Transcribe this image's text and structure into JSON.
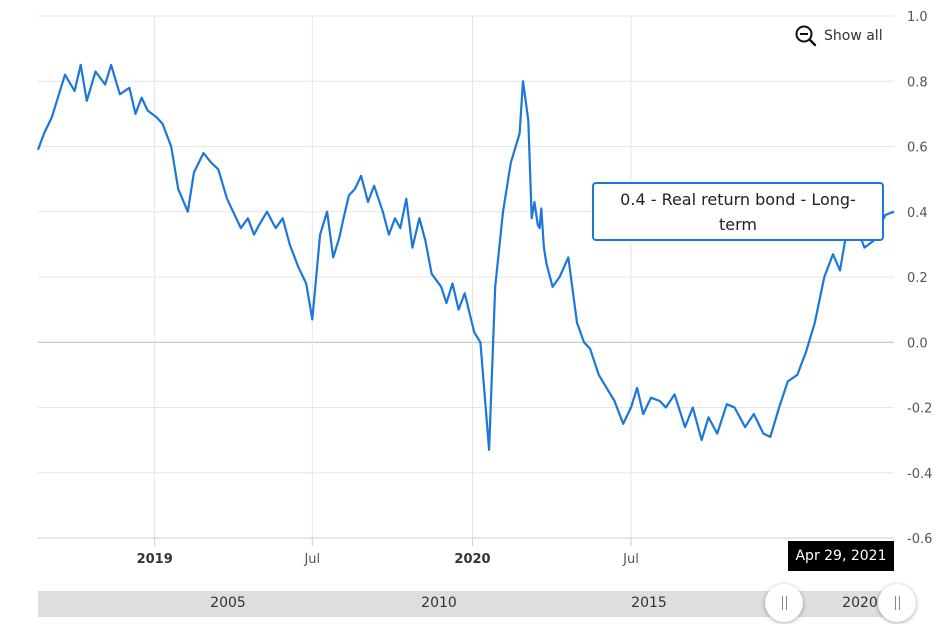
{
  "controls": {
    "show_all_label": "Show all",
    "zoom_out_icon": "zoom-out-icon"
  },
  "tooltip": {
    "text": "0.4 - Real return bond - Long-term"
  },
  "crosshair_date": "Apr 29, 2021",
  "navigator": {
    "labels": [
      "2005",
      "2010",
      "2015",
      "2020"
    ],
    "left_handle_icon": "drag-handle-icon",
    "right_handle_icon": "drag-handle-icon"
  },
  "colors": {
    "line": "#1b77d9",
    "grid": "#e6e6e6",
    "zero_line": "#bbbbbb",
    "tooltip_border": "#1b77d9"
  },
  "chart_data": {
    "type": "line",
    "ylim": [
      -0.6,
      1.0
    ],
    "y_ticks": [
      "1.0",
      "0.8",
      "0.6",
      "0.4",
      "0.2",
      "0.0",
      "-0.2",
      "-0.4",
      "-0.6"
    ],
    "x_ticks": [
      {
        "label": "2019",
        "date": "2019-01-01",
        "bold": true
      },
      {
        "label": "Jul",
        "date": "2019-07-01",
        "bold": false
      },
      {
        "label": "2020",
        "date": "2020-01-01",
        "bold": true
      },
      {
        "label": "Jul",
        "date": "2020-07-01",
        "bold": false
      }
    ],
    "xlim": [
      "2018-08-20",
      "2021-04-29"
    ],
    "grid": true,
    "series": [
      {
        "name": "Real return bond - Long-term",
        "x": [
          "2018-08-20",
          "2018-08-27",
          "2018-09-05",
          "2018-09-20",
          "2018-10-01",
          "2018-10-08",
          "2018-10-15",
          "2018-10-25",
          "2018-11-05",
          "2018-11-12",
          "2018-11-22",
          "2018-12-03",
          "2018-12-10",
          "2018-12-17",
          "2018-12-24",
          "2019-01-03",
          "2019-01-10",
          "2019-01-20",
          "2019-01-28",
          "2019-02-08",
          "2019-02-15",
          "2019-02-26",
          "2019-03-07",
          "2019-03-15",
          "2019-03-25",
          "2019-04-01",
          "2019-04-10",
          "2019-04-18",
          "2019-04-25",
          "2019-05-01",
          "2019-05-10",
          "2019-05-20",
          "2019-05-28",
          "2019-06-05",
          "2019-06-15",
          "2019-06-24",
          "2019-07-01",
          "2019-07-10",
          "2019-07-18",
          "2019-07-25",
          "2019-08-01",
          "2019-08-05",
          "2019-08-12",
          "2019-08-19",
          "2019-08-26",
          "2019-09-03",
          "2019-09-10",
          "2019-09-20",
          "2019-09-27",
          "2019-10-04",
          "2019-10-10",
          "2019-10-17",
          "2019-10-24",
          "2019-11-01",
          "2019-11-08",
          "2019-11-15",
          "2019-11-26",
          "2019-12-02",
          "2019-12-09",
          "2019-12-16",
          "2019-12-23",
          "2020-01-03",
          "2020-01-10",
          "2020-01-20",
          "2020-01-27",
          "2020-02-05",
          "2020-02-14",
          "2020-02-24",
          "2020-02-28",
          "2020-03-05",
          "2020-03-09",
          "2020-03-12",
          "2020-03-16",
          "2020-03-18",
          "2020-03-20",
          "2020-03-23",
          "2020-03-26",
          "2020-04-02",
          "2020-04-10",
          "2020-04-20",
          "2020-04-30",
          "2020-05-08",
          "2020-05-15",
          "2020-05-25",
          "2020-06-03",
          "2020-06-12",
          "2020-06-22",
          "2020-07-01",
          "2020-07-08",
          "2020-07-15",
          "2020-07-24",
          "2020-08-03",
          "2020-08-10",
          "2020-08-20",
          "2020-09-01",
          "2020-09-10",
          "2020-09-20",
          "2020-09-28",
          "2020-10-08",
          "2020-10-19",
          "2020-10-28",
          "2020-11-09",
          "2020-11-19",
          "2020-11-30",
          "2020-12-08",
          "2020-12-18",
          "2020-12-28",
          "2021-01-08",
          "2021-01-18",
          "2021-01-28",
          "2021-02-08",
          "2021-02-18",
          "2021-02-26",
          "2021-03-05",
          "2021-03-12",
          "2021-03-19",
          "2021-03-26",
          "2021-04-05",
          "2021-04-12",
          "2021-04-19",
          "2021-04-29"
        ],
        "y": [
          0.59,
          0.64,
          0.69,
          0.82,
          0.77,
          0.85,
          0.74,
          0.83,
          0.79,
          0.85,
          0.76,
          0.78,
          0.7,
          0.75,
          0.71,
          0.69,
          0.67,
          0.6,
          0.47,
          0.4,
          0.52,
          0.58,
          0.55,
          0.53,
          0.44,
          0.4,
          0.35,
          0.38,
          0.33,
          0.36,
          0.4,
          0.35,
          0.38,
          0.3,
          0.23,
          0.18,
          0.07,
          0.33,
          0.4,
          0.26,
          0.32,
          0.37,
          0.45,
          0.47,
          0.51,
          0.43,
          0.48,
          0.4,
          0.33,
          0.38,
          0.35,
          0.44,
          0.29,
          0.38,
          0.31,
          0.21,
          0.17,
          0.12,
          0.18,
          0.1,
          0.15,
          0.03,
          0.0,
          -0.33,
          0.17,
          0.4,
          0.55,
          0.64,
          0.8,
          0.68,
          0.38,
          0.43,
          0.36,
          0.35,
          0.41,
          0.29,
          0.24,
          0.17,
          0.2,
          0.26,
          0.06,
          0.0,
          -0.02,
          -0.1,
          -0.14,
          -0.18,
          -0.25,
          -0.2,
          -0.14,
          -0.22,
          -0.17,
          -0.18,
          -0.2,
          -0.16,
          -0.26,
          -0.2,
          -0.3,
          -0.23,
          -0.28,
          -0.19,
          -0.2,
          -0.26,
          -0.22,
          -0.28,
          -0.29,
          -0.2,
          -0.12,
          -0.1,
          -0.03,
          0.06,
          0.2,
          0.27,
          0.22,
          0.33,
          0.37,
          0.34,
          0.29,
          0.31,
          0.35,
          0.39,
          0.4
        ]
      }
    ]
  }
}
